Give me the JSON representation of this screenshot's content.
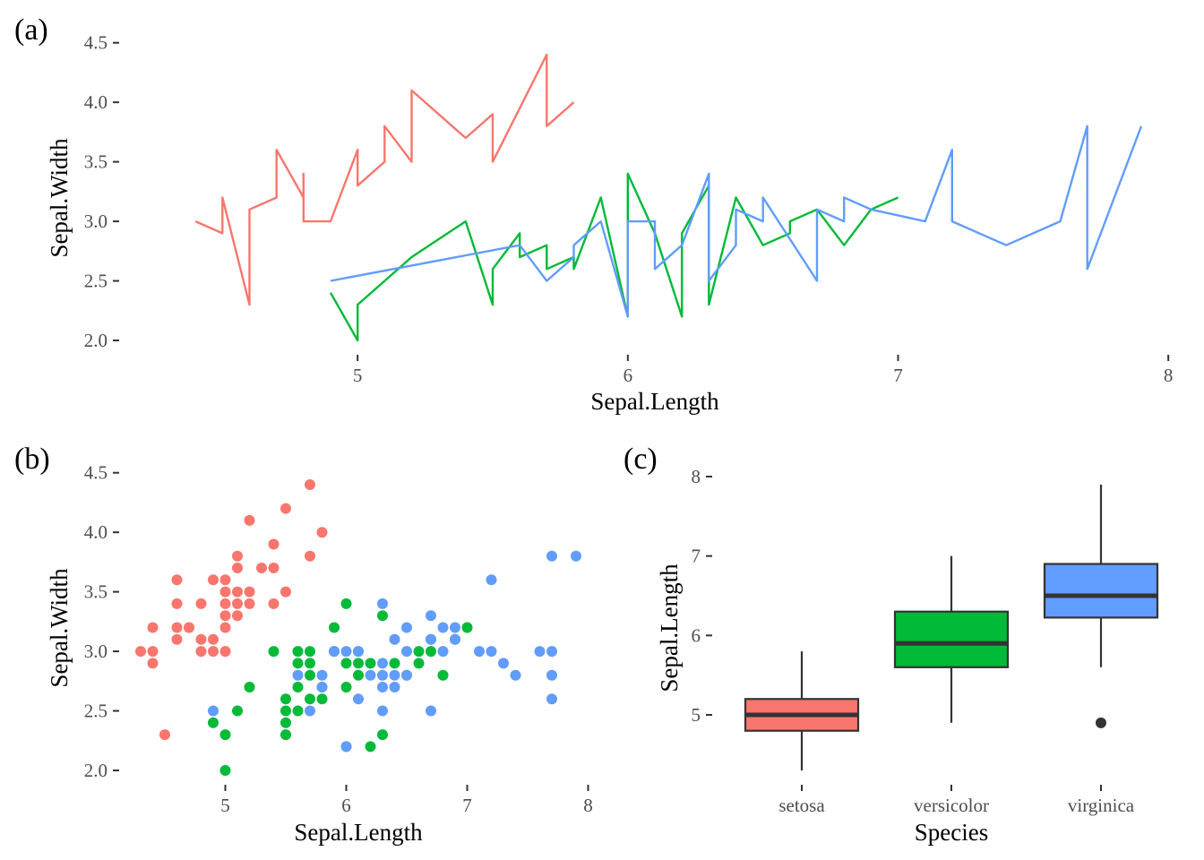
{
  "chart_data": [
    {
      "panel": "(a)",
      "type": "line",
      "xlabel": "Sepal.Length",
      "ylabel": "Sepal.Width",
      "xlim": [
        4.3,
        7.9
      ],
      "ylim": [
        2.0,
        4.4
      ],
      "xticks": [
        "5",
        "6",
        "7",
        "8"
      ],
      "yticks": [
        "2.0",
        "2.5",
        "3.0",
        "3.5",
        "4.0",
        "4.5"
      ],
      "grid": false,
      "legend": "none",
      "series": [
        {
          "color": "#F8766D",
          "x": [
            4.4,
            4.5,
            4.5,
            4.6,
            4.6,
            4.7,
            4.7,
            4.8,
            4.8,
            4.8,
            4.9,
            5.0,
            5.0,
            5.1,
            5.1,
            5.2,
            5.2,
            5.4,
            5.5,
            5.5,
            5.7,
            5.7,
            5.8
          ],
          "y": [
            3.0,
            2.9,
            3.2,
            2.3,
            3.1,
            3.2,
            3.6,
            3.2,
            3.4,
            3.0,
            3.0,
            3.6,
            3.3,
            3.5,
            3.8,
            3.5,
            4.1,
            3.7,
            3.9,
            3.5,
            4.4,
            3.8,
            4.0
          ]
        },
        {
          "color": "#00BA38",
          "x": [
            4.9,
            5.0,
            5.0,
            5.2,
            5.4,
            5.5,
            5.5,
            5.6,
            5.6,
            5.7,
            5.7,
            5.8,
            5.8,
            5.9,
            6.0,
            6.0,
            6.1,
            6.2,
            6.2,
            6.3,
            6.3,
            6.4,
            6.5,
            6.6,
            6.6,
            6.7,
            6.8,
            6.9,
            7.0
          ],
          "y": [
            2.4,
            2.0,
            2.3,
            2.7,
            3.0,
            2.3,
            2.6,
            2.9,
            2.7,
            2.8,
            2.6,
            2.7,
            2.6,
            3.2,
            2.2,
            3.4,
            2.9,
            2.2,
            2.9,
            3.3,
            2.3,
            3.2,
            2.8,
            2.9,
            3.0,
            3.1,
            2.8,
            3.1,
            3.2
          ]
        },
        {
          "color": "#619CFF",
          "x": [
            4.9,
            5.6,
            5.7,
            5.8,
            5.8,
            5.9,
            6.0,
            6.0,
            6.1,
            6.1,
            6.2,
            6.3,
            6.3,
            6.4,
            6.4,
            6.5,
            6.5,
            6.7,
            6.7,
            6.8,
            6.8,
            6.9,
            7.1,
            7.2,
            7.2,
            7.4,
            7.6,
            7.7,
            7.7,
            7.9
          ],
          "y": [
            2.5,
            2.8,
            2.5,
            2.7,
            2.8,
            3.0,
            2.2,
            3.0,
            3.0,
            2.6,
            2.8,
            3.4,
            2.5,
            2.8,
            3.1,
            3.0,
            3.2,
            2.5,
            3.1,
            3.0,
            3.2,
            3.1,
            3.0,
            3.6,
            3.0,
            2.8,
            3.0,
            3.8,
            2.6,
            3.8
          ]
        }
      ]
    },
    {
      "panel": "(b)",
      "type": "scatter",
      "xlabel": "Sepal.Length",
      "ylabel": "Sepal.Width",
      "xlim": [
        4.3,
        7.9
      ],
      "ylim": [
        2.0,
        4.4
      ],
      "xticks": [
        "5",
        "6",
        "7",
        "8"
      ],
      "yticks": [
        "2.0",
        "2.5",
        "3.0",
        "3.5",
        "4.0",
        "4.5"
      ],
      "grid": false,
      "legend": "none",
      "series": [
        {
          "color": "#F8766D",
          "x": [
            4.3,
            4.4,
            4.4,
            4.4,
            4.5,
            4.6,
            4.6,
            4.6,
            4.6,
            4.7,
            4.7,
            4.8,
            4.8,
            4.8,
            4.9,
            4.9,
            4.9,
            5.0,
            5.0,
            5.0,
            5.0,
            5.0,
            5.0,
            5.1,
            5.1,
            5.1,
            5.1,
            5.1,
            5.2,
            5.2,
            5.2,
            5.3,
            5.4,
            5.4,
            5.4,
            5.5,
            5.5,
            5.7,
            5.7,
            5.8
          ],
          "y": [
            3.0,
            2.9,
            3.0,
            3.2,
            2.3,
            3.1,
            3.2,
            3.4,
            3.6,
            3.2,
            3.2,
            3.0,
            3.1,
            3.4,
            3.0,
            3.1,
            3.6,
            3.0,
            3.2,
            3.3,
            3.4,
            3.5,
            3.6,
            3.3,
            3.4,
            3.5,
            3.7,
            3.8,
            3.4,
            3.5,
            4.1,
            3.7,
            3.4,
            3.7,
            3.9,
            3.5,
            4.2,
            3.8,
            4.4,
            4.0
          ]
        },
        {
          "color": "#00BA38",
          "x": [
            4.9,
            5.0,
            5.0,
            5.1,
            5.2,
            5.4,
            5.5,
            5.5,
            5.5,
            5.5,
            5.6,
            5.6,
            5.6,
            5.6,
            5.7,
            5.7,
            5.7,
            5.7,
            5.8,
            5.8,
            5.9,
            5.9,
            6.0,
            6.0,
            6.0,
            6.0,
            6.1,
            6.1,
            6.1,
            6.2,
            6.2,
            6.3,
            6.3,
            6.4,
            6.5,
            6.6,
            6.6,
            6.7,
            6.7,
            6.8,
            6.9,
            7.0
          ],
          "y": [
            2.4,
            2.0,
            2.3,
            2.5,
            2.7,
            3.0,
            2.3,
            2.4,
            2.5,
            2.6,
            2.5,
            2.7,
            2.9,
            3.0,
            2.6,
            2.8,
            2.9,
            3.0,
            2.6,
            2.7,
            3.0,
            3.2,
            2.2,
            2.7,
            2.9,
            3.4,
            2.8,
            2.9,
            3.0,
            2.2,
            2.9,
            2.3,
            3.3,
            2.9,
            2.8,
            2.9,
            3.0,
            3.0,
            3.1,
            2.8,
            3.1,
            3.2
          ]
        },
        {
          "color": "#619CFF",
          "x": [
            4.9,
            5.6,
            5.7,
            5.8,
            5.8,
            5.9,
            6.0,
            6.0,
            6.1,
            6.1,
            6.2,
            6.3,
            6.3,
            6.3,
            6.3,
            6.3,
            6.4,
            6.4,
            6.4,
            6.5,
            6.5,
            6.5,
            6.7,
            6.7,
            6.7,
            6.8,
            6.8,
            6.9,
            6.9,
            7.1,
            7.2,
            7.2,
            7.3,
            7.4,
            7.6,
            7.7,
            7.7,
            7.7,
            7.7,
            7.9
          ],
          "y": [
            2.5,
            2.8,
            2.5,
            2.7,
            2.8,
            3.0,
            2.2,
            3.0,
            3.0,
            2.6,
            2.8,
            2.5,
            2.7,
            2.8,
            2.9,
            3.4,
            2.7,
            2.8,
            3.1,
            2.8,
            3.0,
            3.2,
            2.5,
            3.1,
            3.3,
            3.0,
            3.2,
            3.1,
            3.2,
            3.0,
            3.0,
            3.6,
            2.9,
            2.8,
            3.0,
            2.6,
            2.8,
            3.0,
            3.8,
            3.8
          ]
        }
      ]
    },
    {
      "panel": "(c)",
      "type": "box",
      "xlabel": "Species",
      "ylabel": "Sepal.Length",
      "ylim": [
        4.3,
        7.9
      ],
      "yticks": [
        "5",
        "6",
        "7",
        "8"
      ],
      "categories": [
        "setosa",
        "versicolor",
        "virginica"
      ],
      "grid": false,
      "legend": "none",
      "boxes": [
        {
          "color": "#F8766D",
          "min": 4.3,
          "q1": 4.8,
          "median": 5.0,
          "q3": 5.2,
          "max": 5.8,
          "outliers": []
        },
        {
          "color": "#00BA38",
          "min": 4.9,
          "q1": 5.6,
          "median": 5.9,
          "q3": 6.3,
          "max": 7.0,
          "outliers": []
        },
        {
          "color": "#619CFF",
          "min": 5.6,
          "q1": 6.225,
          "median": 6.5,
          "q3": 6.9,
          "max": 7.9,
          "outliers": [
            4.9
          ]
        }
      ]
    }
  ]
}
